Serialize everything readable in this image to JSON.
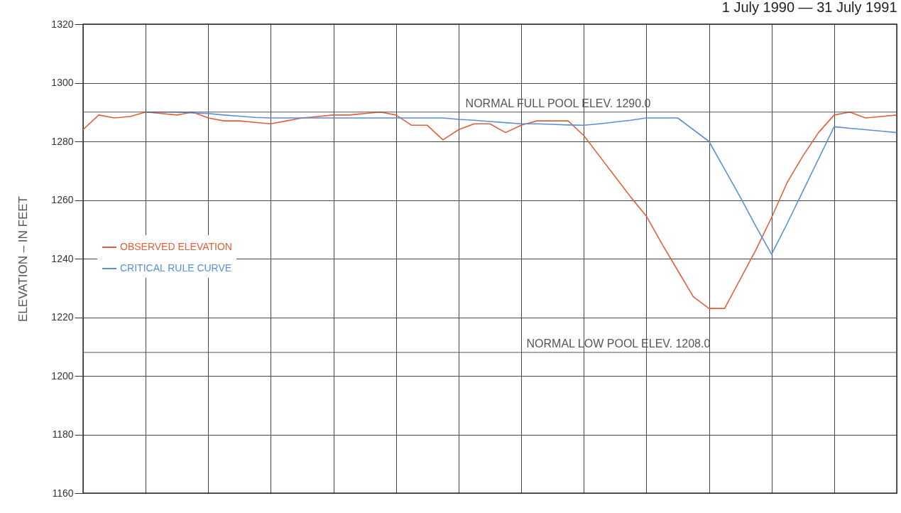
{
  "chart_data": {
    "type": "line",
    "title": "1 July 1990 — 31 July 1991",
    "ylabel": "ELEVATION – IN FEET",
    "categories": [
      null,
      null,
      null,
      null,
      null,
      null,
      null,
      null,
      null,
      null,
      null,
      null,
      null,
      null,
      null,
      null,
      null,
      null,
      null,
      null,
      null,
      null,
      null,
      null,
      null,
      null,
      null,
      null,
      null,
      null,
      null,
      null,
      null,
      null,
      null,
      null,
      null,
      null,
      null,
      null,
      null,
      null,
      null,
      null,
      null,
      null,
      null,
      null,
      null,
      null,
      null,
      null,
      null
    ],
    "ylim": [
      1160,
      1320
    ],
    "yticks": [
      1160,
      1180,
      1200,
      1220,
      1240,
      1260,
      1280,
      1300,
      1320
    ],
    "tick_labels": "y",
    "grid": true,
    "legend": "left",
    "line_style": "solid",
    "series": [
      {
        "name": "OBSERVED ELEVATION",
        "color": "#e0603c",
        "values": [
          1284,
          1289,
          1288,
          1288.5,
          1290,
          1289.5,
          1289,
          1290,
          1288,
          1287,
          1287,
          1286.5,
          1286,
          1287,
          1288,
          1288.5,
          1289,
          1289,
          1289.5,
          1290,
          1289,
          1285.5,
          1285.5,
          1280.5,
          1284,
          1286,
          1286,
          1283,
          1285.5,
          1287,
          1287,
          1287,
          1282,
          1275,
          1268,
          1261,
          1254.5,
          1245,
          1236,
          1227,
          1223,
          1223,
          1233,
          1243,
          1254,
          1266,
          1275,
          1283,
          1289,
          1290,
          1288,
          1288.5,
          1289
        ]
      },
      {
        "name": "CRITICAL RULE CURVE",
        "color": "#5b8fd6",
        "values": [
          null,
          null,
          null,
          null,
          1290,
          1290,
          1290,
          1289.7,
          1289.5,
          1289,
          1288.6,
          1288.2,
          1288,
          1288,
          1288,
          1288,
          1288,
          1288,
          1288,
          1288,
          1288,
          1288,
          1288,
          1288,
          1287.5,
          1287.2,
          1286.8,
          1286.4,
          1286,
          1286,
          1285.8,
          1285.6,
          1285.5,
          1286,
          1286.6,
          1287.2,
          1288,
          1288,
          1288,
          1284,
          1280,
          1270.5,
          1261,
          1251,
          1241.5,
          1252,
          1263,
          1274,
          1285,
          1284.5,
          1284,
          1283.5,
          1283
        ]
      }
    ],
    "ref_lines": [
      {
        "axis": "y",
        "value": 1290,
        "label": "NORMAL FULL POOL ELEV. 1290.0",
        "color": "#555555"
      },
      {
        "axis": "y",
        "value": 1208,
        "label": "NORMAL LOW POOL ELEV. 1208.0",
        "color": "#555555"
      }
    ]
  }
}
